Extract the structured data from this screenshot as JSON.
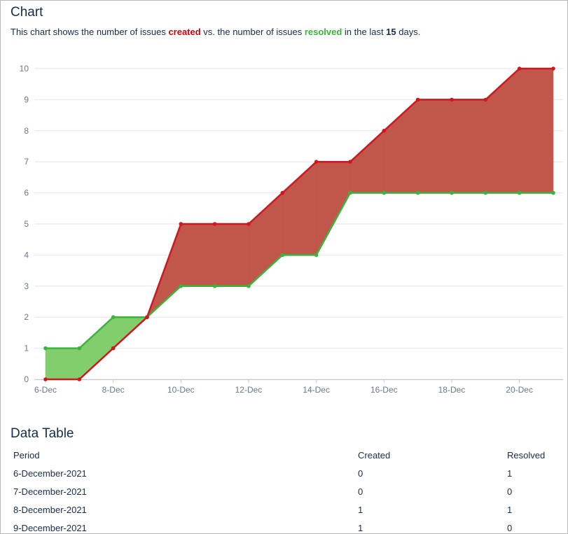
{
  "header": {
    "title": "Chart",
    "desc_prefix": "This chart shows the number of issues ",
    "desc_created": "created",
    "desc_middle": " vs. the number of issues ",
    "desc_resolved": "resolved",
    "desc_suffix1": " in the last ",
    "desc_days": "15",
    "desc_suffix2": " days."
  },
  "chart_data": {
    "type": "area",
    "title": "Chart",
    "x": [
      "6-Dec",
      "7-Dec",
      "8-Dec",
      "9-Dec",
      "10-Dec",
      "11-Dec",
      "12-Dec",
      "13-Dec",
      "14-Dec",
      "15-Dec",
      "16-Dec",
      "17-Dec",
      "18-Dec",
      "19-Dec",
      "20-Dec",
      "21-Dec"
    ],
    "x_tick_labels": [
      "6-Dec",
      "8-Dec",
      "10-Dec",
      "12-Dec",
      "14-Dec",
      "16-Dec",
      "18-Dec",
      "20-Dec"
    ],
    "y_ticks": [
      "0",
      "1",
      "2",
      "3",
      "4",
      "5",
      "6",
      "7",
      "8",
      "9",
      "10"
    ],
    "ylim": [
      0,
      10
    ],
    "series": [
      {
        "name": "created",
        "color": "#d0161f",
        "values": [
          0,
          0,
          1,
          2,
          5,
          5,
          5,
          6,
          7,
          7,
          8,
          9,
          9,
          9,
          10,
          10
        ]
      },
      {
        "name": "resolved",
        "color": "#3bb43b",
        "values": [
          1,
          1,
          2,
          2,
          3,
          3,
          3,
          4,
          4,
          6,
          6,
          6,
          6,
          6,
          6,
          6
        ]
      }
    ],
    "fill_created_ahead": "#c0574a",
    "fill_resolved_ahead": "#82ce6d",
    "grid": true
  },
  "table": {
    "title": "Data Table",
    "headers": [
      "Period",
      "Created",
      "Resolved"
    ],
    "rows": [
      [
        "6-December-2021",
        "0",
        "1"
      ],
      [
        "7-December-2021",
        "0",
        "0"
      ],
      [
        "8-December-2021",
        "1",
        "1"
      ],
      [
        "9-December-2021",
        "1",
        "0"
      ]
    ]
  }
}
